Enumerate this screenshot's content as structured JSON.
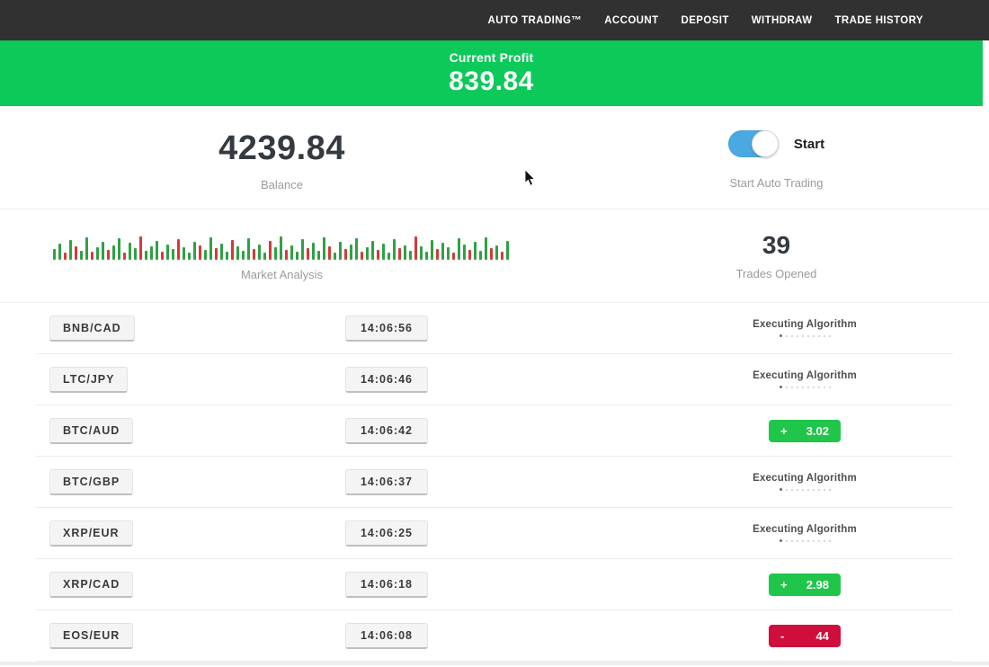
{
  "nav": {
    "items": [
      "AUTO TRADING™",
      "ACCOUNT",
      "DEPOSIT",
      "WITHDRAW",
      "TRADE HISTORY"
    ]
  },
  "profit_banner": {
    "label": "Current Profit",
    "value": "839.84"
  },
  "account": {
    "balance": "4239.84",
    "balance_label": "Balance"
  },
  "auto_trading": {
    "toggle_label": "Start",
    "caption": "Start Auto Trading",
    "enabled": true
  },
  "market": {
    "label": "Market Analysis",
    "bars": "g12,g18,r8,g22,r15,g10,g25,r9,g14,g20,r11,g16,g24,r8,g19,g13,r26,g10,g15,g21,r9,g17,g12,r23,g14,g8,g20,r16,g11,g25,r13,g18,g9,r22,g15,g10,g24,r12,g17,g8,r21,g14,g26,r11,g16,g9,g23,r13,g19,g10,g25,r15,g8,g20,r12,g17,g24,r9,g14,g21,r11,g18,g8,g23,r13,g16,g10,r26,g15,g9,g22,r12,g19,g14,r8,g24,g17,r11,g20,g10,g25,r13,g16,r9,g21"
  },
  "trades_opened": {
    "value": "39",
    "label": "Trades Opened"
  },
  "executing_dots_count": 10,
  "trades": [
    {
      "pair": "BNB/CAD",
      "time": "14:06:56",
      "status": {
        "type": "executing",
        "label": "Executing Algorithm"
      }
    },
    {
      "pair": "LTC/JPY",
      "time": "14:06:46",
      "status": {
        "type": "executing",
        "label": "Executing Algorithm"
      }
    },
    {
      "pair": "BTC/AUD",
      "time": "14:06:42",
      "status": {
        "type": "profit",
        "sign": "+",
        "value": "3.02"
      }
    },
    {
      "pair": "BTC/GBP",
      "time": "14:06:37",
      "status": {
        "type": "executing",
        "label": "Executing Algorithm"
      }
    },
    {
      "pair": "XRP/EUR",
      "time": "14:06:25",
      "status": {
        "type": "executing",
        "label": "Executing Algorithm"
      }
    },
    {
      "pair": "XRP/CAD",
      "time": "14:06:18",
      "status": {
        "type": "profit",
        "sign": "+",
        "value": "2.98"
      }
    },
    {
      "pair": "EOS/EUR",
      "time": "14:06:08",
      "status": {
        "type": "loss",
        "sign": "-",
        "value": "44"
      }
    }
  ],
  "colors": {
    "nav_bg": "#313131",
    "banner_green": "#0cc95a",
    "badge_green": "#1fc64a",
    "badge_red": "#d00e3c",
    "toggle_blue": "#4aa9e0",
    "bar_green": "#2fa144",
    "bar_red": "#d43a3a",
    "heading_text": "#343a40",
    "muted_text": "#9b9b9b"
  }
}
